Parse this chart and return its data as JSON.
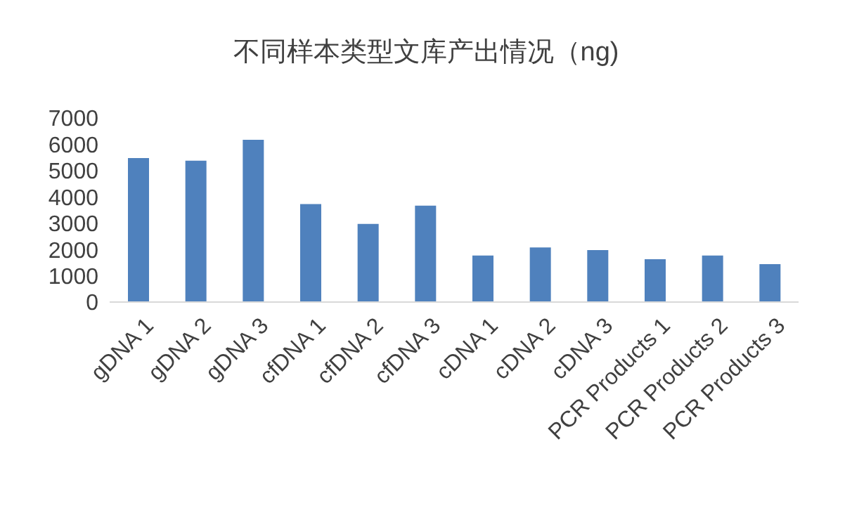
{
  "chart_data": {
    "type": "bar",
    "title": "不同样本类型文库产出情况（ng)",
    "categories": [
      "gDNA 1",
      "gDNA 2",
      "gDNA 3",
      "cfDNA 1",
      "cfDNA 2",
      "cfDNA 3",
      "cDNA 1",
      "cDNA 2",
      "cDNA 3",
      "PCR Products 1",
      "PCR Products 2",
      "PCR Products 3"
    ],
    "values": [
      5480,
      5380,
      6170,
      3730,
      2970,
      3670,
      1770,
      2080,
      1980,
      1630,
      1770,
      1440
    ],
    "color": "#4f81bd",
    "ylim": [
      0,
      7000
    ],
    "yticks": [
      0,
      1000,
      2000,
      3000,
      4000,
      5000,
      6000,
      7000
    ],
    "grid": false,
    "legend": false
  }
}
